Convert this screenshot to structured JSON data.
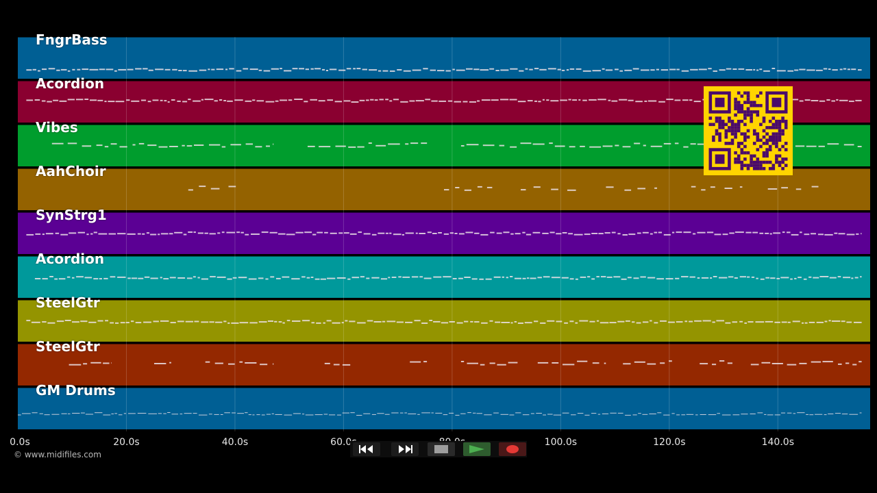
{
  "tracks": [
    {
      "name": "FngrBass",
      "color": "#005f94"
    },
    {
      "name": "Acordion",
      "color": "#8a0030"
    },
    {
      "name": "Vibes",
      "color": "#009d2d"
    },
    {
      "name": "AahChoir",
      "color": "#946200"
    },
    {
      "name": "SynStrg1",
      "color": "#5b0094"
    },
    {
      "name": "Acordion",
      "color": "#00999b"
    },
    {
      "name": "SteelGtr",
      "color": "#949400"
    },
    {
      "name": "SteelGtr",
      "color": "#942800"
    },
    {
      "name": "GM Drums",
      "color": "#005f94"
    }
  ],
  "timeline": {
    "ticks": [
      "0.0s",
      "20.0s",
      "40.0s",
      "60.0s",
      "80.0s",
      "100.0s",
      "120.0s",
      "140.0s"
    ],
    "tick_values": [
      0,
      20,
      40,
      60,
      80,
      100,
      120,
      140
    ],
    "max_seconds": 157
  },
  "copyright": "© www.midifiles.com",
  "transport": {
    "buttons": [
      "rewind",
      "fast-forward",
      "stop",
      "play",
      "record"
    ],
    "play_color": "#4caf50",
    "record_color": "#e53935"
  },
  "qr_code": {
    "color": "#ffd400",
    "module_color": "#4a0a6b"
  }
}
